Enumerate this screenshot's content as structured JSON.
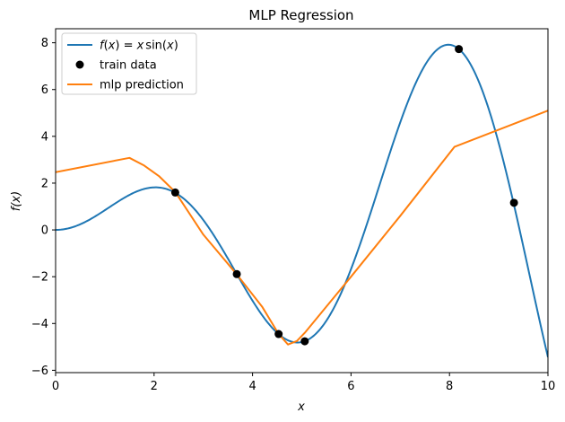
{
  "chart_data": {
    "type": "line",
    "title": "MLP Regression",
    "xlabel": "x",
    "ylabel": "f(x)",
    "xlim": [
      0,
      10
    ],
    "ylim": [
      -6.1,
      8.6
    ],
    "xticks": [
      0,
      2,
      4,
      6,
      8,
      10
    ],
    "yticks": [
      -6,
      -4,
      -2,
      0,
      2,
      4,
      6,
      8
    ],
    "xtick_labels": [
      "0",
      "2",
      "4",
      "6",
      "8",
      "10"
    ],
    "ytick_labels": [
      "−6",
      "−4",
      "−2",
      "0",
      "2",
      "4",
      "6",
      "8"
    ],
    "grid": false,
    "legend": {
      "placement": "upper-left"
    },
    "series": [
      {
        "name": "f(x) = x sin(x)",
        "legend_parts": [
          "f",
          "(",
          "x",
          ") = ",
          "x",
          "sin(",
          "x",
          ")"
        ],
        "kind": "line",
        "color": "#1f77b4",
        "function": "x*sin(x)"
      },
      {
        "name": "train data",
        "kind": "scatter",
        "color": "#000000",
        "x": [
          2.43,
          3.68,
          4.53,
          5.06,
          8.19,
          9.31
        ],
        "y": [
          1.6,
          -1.89,
          -4.45,
          -4.76,
          7.73,
          1.16
        ]
      },
      {
        "name": "mlp prediction",
        "kind": "line",
        "color": "#ff7f0e",
        "x": [
          0.0,
          1.5,
          1.8,
          2.1,
          2.43,
          3.0,
          3.68,
          4.2,
          4.53,
          4.72,
          4.9,
          5.06,
          6.0,
          7.0,
          8.1,
          10.0
        ],
        "y": [
          2.47,
          3.08,
          2.75,
          2.3,
          1.62,
          -0.2,
          -1.9,
          -3.3,
          -4.45,
          -4.9,
          -4.75,
          -4.4,
          -2.0,
          0.6,
          3.55,
          5.1
        ]
      }
    ]
  }
}
